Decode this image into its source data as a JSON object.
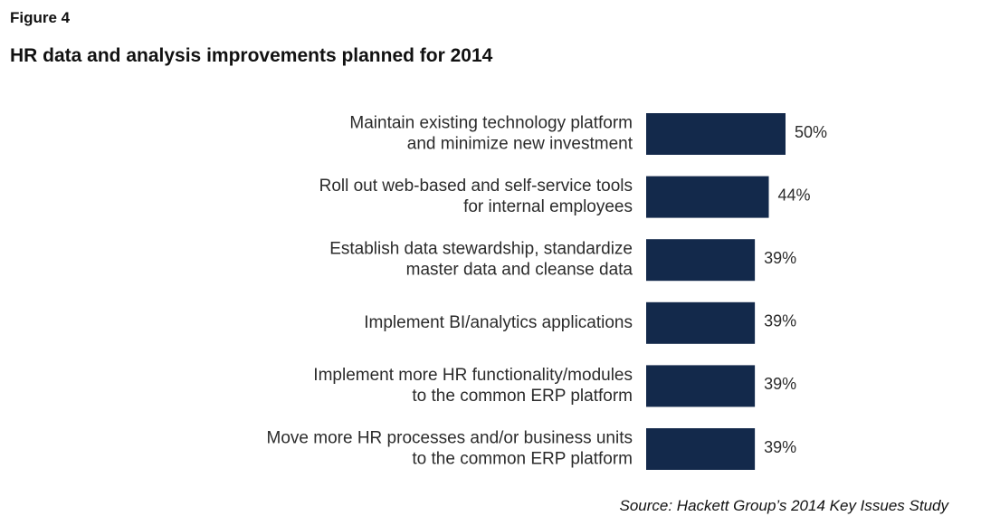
{
  "figure_label": "Figure 4",
  "source": "Source: Hackett Group’s 2014 Key Issues Study",
  "chart_data": {
    "type": "bar",
    "orientation": "horizontal",
    "title": "HR data and analysis improvements planned for 2014",
    "value_suffix": "%",
    "bar_color": "#13294b",
    "xlim": [
      0,
      50
    ],
    "categories": [
      [
        "Maintain existing technology platform",
        "and minimize new investment"
      ],
      [
        "Roll out web-based and self-service tools",
        "for internal employees"
      ],
      [
        "Establish data stewardship, standardize",
        "master data and cleanse data"
      ],
      [
        "Implement BI/analytics applications"
      ],
      [
        "Implement more HR functionality/modules",
        "to the common ERP platform"
      ],
      [
        "Move more HR processes and/or business units",
        "to the common ERP platform"
      ]
    ],
    "values": [
      50,
      44,
      39,
      39,
      39,
      39
    ],
    "labels": [
      "50%",
      "44%",
      "39%",
      "39%",
      "39%",
      "39%"
    ]
  }
}
